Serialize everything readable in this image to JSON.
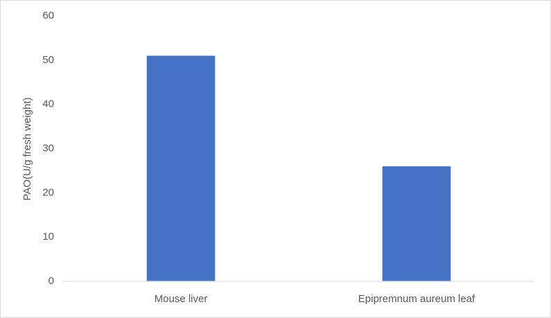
{
  "chart_data": {
    "type": "bar",
    "y_label": "PAO(U/g fresh weight)",
    "categories": [
      "Mouse liver",
      "Epipremnum aureum leaf"
    ],
    "values": [
      51,
      26
    ],
    "color": "#4472c4",
    "ylim": [
      0,
      60
    ],
    "yticks": [
      0,
      10,
      20,
      30,
      40,
      50,
      60
    ],
    "grid": false
  }
}
